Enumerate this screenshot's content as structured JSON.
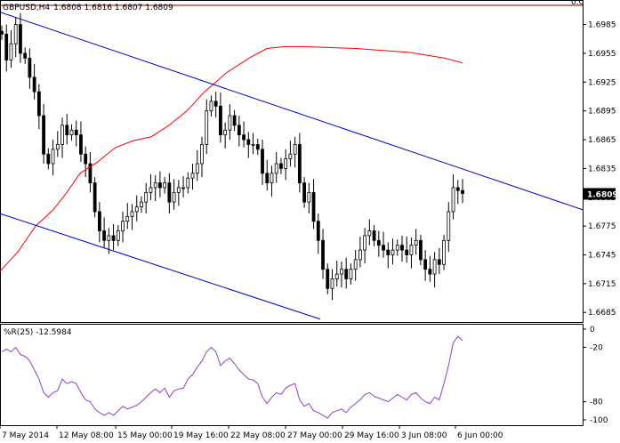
{
  "header": {
    "symbol_timeframe": "GBPUSD,H4",
    "ohlc": "1.6808 1.6816 1.6807 1.6809",
    "top_right_value": "0.0"
  },
  "indicator": {
    "label": "%R(25) -12.5984",
    "last_value": -12.5984
  },
  "chart_data": [
    {
      "type": "candlestick",
      "symbol": "GBPUSD",
      "timeframe": "H4",
      "last_price": "1.6809",
      "ylim": [
        1.6675,
        1.7005
      ],
      "y_ticks": [
        "1.6985",
        "1.6955",
        "1.6925",
        "1.6895",
        "1.6865",
        "1.6835",
        "1.6805",
        "1.6775",
        "1.6745",
        "1.6715",
        "1.6685"
      ],
      "x_ticks": [
        "7 May 2014",
        "12 May 08:00",
        "15 May 00:00",
        "19 May 16:00",
        "22 May 08:00",
        "27 May 00:00",
        "29 May 16:00",
        "3 Jun 08:00",
        "6 Jun 00:00"
      ],
      "bar_count": 100,
      "closes": [
        1.6975,
        1.6948,
        1.6965,
        1.6985,
        1.6955,
        1.695,
        1.693,
        1.6915,
        1.689,
        1.685,
        1.684,
        1.6855,
        1.686,
        1.688,
        1.687,
        1.6875,
        1.687,
        1.685,
        1.684,
        1.682,
        1.679,
        1.677,
        1.676,
        1.6765,
        1.676,
        1.677,
        1.678,
        1.6785,
        1.679,
        1.6795,
        1.68,
        1.681,
        1.6815,
        1.682,
        1.6815,
        1.682,
        1.68,
        1.681,
        1.6815,
        1.6815,
        1.6825,
        1.683,
        1.684,
        1.686,
        1.6895,
        1.6905,
        1.69,
        1.687,
        1.6875,
        1.689,
        1.688,
        1.687,
        1.6865,
        1.686,
        1.686,
        1.6855,
        1.683,
        1.682,
        1.683,
        1.684,
        1.6835,
        1.6845,
        1.685,
        1.686,
        1.682,
        1.68,
        1.681,
        1.678,
        1.676,
        1.673,
        1.671,
        1.672,
        1.6725,
        1.673,
        1.672,
        1.673,
        1.674,
        1.675,
        1.6765,
        1.677,
        1.676,
        1.6755,
        1.675,
        1.6745,
        1.675,
        1.6755,
        1.675,
        1.6745,
        1.6755,
        1.676,
        1.674,
        1.673,
        1.6725,
        1.674,
        1.6735,
        1.676,
        1.679,
        1.6815,
        1.6812,
        1.6809
      ],
      "moving_average": [
        [
          0,
          1.6728
        ],
        [
          20,
          1.6748
        ],
        [
          40,
          1.6775
        ],
        [
          60,
          1.6792
        ],
        [
          75,
          1.681
        ],
        [
          90,
          1.683
        ],
        [
          110,
          1.6842
        ],
        [
          130,
          1.6857
        ],
        [
          150,
          1.6864
        ],
        [
          170,
          1.6868
        ],
        [
          190,
          1.688
        ],
        [
          210,
          1.6895
        ],
        [
          230,
          1.6915
        ],
        [
          255,
          1.6935
        ],
        [
          280,
          1.695
        ],
        [
          300,
          1.696
        ],
        [
          320,
          1.6962
        ],
        [
          340,
          1.6962
        ],
        [
          400,
          1.696
        ],
        [
          460,
          1.6956
        ],
        [
          500,
          1.695
        ],
        [
          520,
          1.6945
        ]
      ],
      "channel_upper": [
        [
          0,
          1.6998
        ],
        [
          655,
          1.6792
        ]
      ],
      "channel_lower": [
        [
          0,
          1.6788
        ],
        [
          360,
          1.6678
        ]
      ]
    },
    {
      "type": "line",
      "name": "%R(25)",
      "ylim": [
        -100,
        0
      ],
      "y_ticks": [
        "0",
        "-20",
        "-80",
        "-100"
      ],
      "values": [
        -25,
        -22,
        -25,
        -20,
        -28,
        -30,
        -35,
        -45,
        -55,
        -70,
        -75,
        -70,
        -68,
        -55,
        -60,
        -58,
        -60,
        -70,
        -78,
        -80,
        -88,
        -92,
        -95,
        -92,
        -95,
        -90,
        -85,
        -88,
        -86,
        -84,
        -80,
        -75,
        -70,
        -66,
        -70,
        -65,
        -75,
        -68,
        -66,
        -65,
        -55,
        -50,
        -42,
        -35,
        -25,
        -20,
        -25,
        -40,
        -35,
        -32,
        -38,
        -45,
        -50,
        -55,
        -56,
        -60,
        -75,
        -82,
        -75,
        -70,
        -72,
        -65,
        -62,
        -60,
        -78,
        -85,
        -82,
        -90,
        -92,
        -95,
        -98,
        -92,
        -90,
        -88,
        -92,
        -86,
        -82,
        -78,
        -72,
        -70,
        -74,
        -76,
        -78,
        -80,
        -76,
        -72,
        -75,
        -78,
        -72,
        -70,
        -76,
        -80,
        -82,
        -75,
        -78,
        -60,
        -40,
        -15,
        -8,
        -12.5984
      ]
    }
  ],
  "colors": {
    "candles": "#000000",
    "moving_average": "#ff0000",
    "channel": "#0000cc",
    "indicator_line": "#9040c0",
    "indicator_level": "#800000",
    "price_label_bg": "#000000",
    "price_label_text": "#ffffff",
    "grid_border": "#000000"
  }
}
